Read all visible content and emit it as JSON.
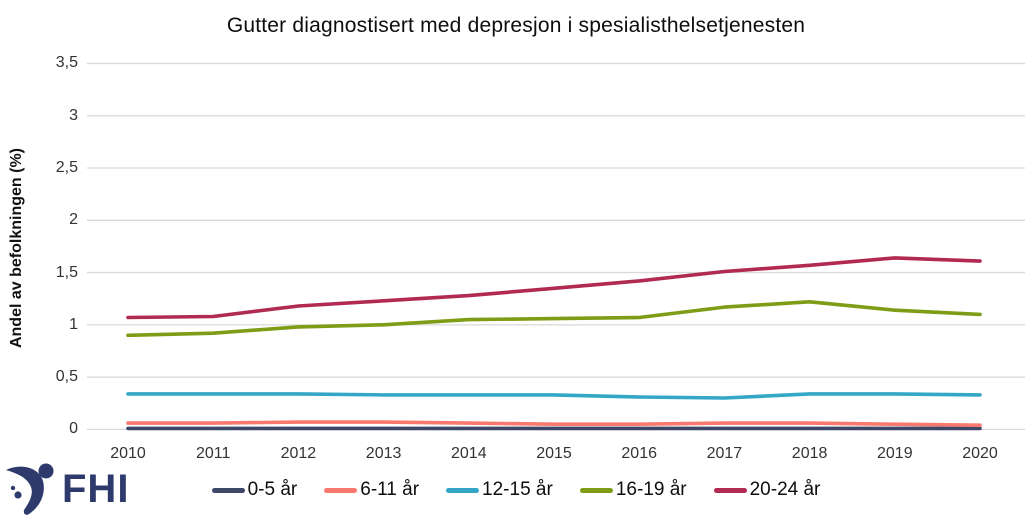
{
  "header": {
    "title": "Gutter diagnostisert med depresjon i spesialisthelsetjenesten"
  },
  "branding": {
    "logo_text": "FHI",
    "logo_color": "#2d3a6b"
  },
  "chart_data": {
    "type": "line",
    "title": "Gutter diagnostisert med depresjon i spesialisthelsetjenesten",
    "xlabel": "",
    "ylabel": "Andel av befolkningen (%)",
    "x": [
      2010,
      2011,
      2012,
      2013,
      2014,
      2015,
      2016,
      2017,
      2018,
      2019,
      2020
    ],
    "series": [
      {
        "name": "0-5 år",
        "color": "#3f4769",
        "values": [
          0.01,
          0.01,
          0.01,
          0.01,
          0.01,
          0.01,
          0.01,
          0.01,
          0.01,
          0.01,
          0.01
        ]
      },
      {
        "name": "6-11 år",
        "color": "#f9796e",
        "values": [
          0.06,
          0.06,
          0.07,
          0.07,
          0.06,
          0.05,
          0.05,
          0.06,
          0.06,
          0.05,
          0.04
        ]
      },
      {
        "name": "12-15 år",
        "color": "#35a7c6",
        "values": [
          0.34,
          0.34,
          0.34,
          0.33,
          0.33,
          0.33,
          0.31,
          0.3,
          0.34,
          0.34,
          0.33
        ]
      },
      {
        "name": "16-19 år",
        "color": "#7e9c15",
        "values": [
          0.9,
          0.92,
          0.98,
          1.0,
          1.05,
          1.06,
          1.07,
          1.17,
          1.22,
          1.14,
          1.1
        ]
      },
      {
        "name": "20-24 år",
        "color": "#b02a52",
        "values": [
          1.07,
          1.08,
          1.18,
          1.23,
          1.28,
          1.35,
          1.42,
          1.51,
          1.57,
          1.64,
          1.61
        ]
      }
    ],
    "ylim": [
      0,
      3.5
    ],
    "ytick_step": 0.5,
    "ytick_labels": [
      "0",
      "0,5",
      "1",
      "1,5",
      "2",
      "2,5",
      "3",
      "3,5"
    ],
    "grid": "horizontal",
    "gridline_color": "#d9d9d9",
    "legend_position": "bottom"
  }
}
